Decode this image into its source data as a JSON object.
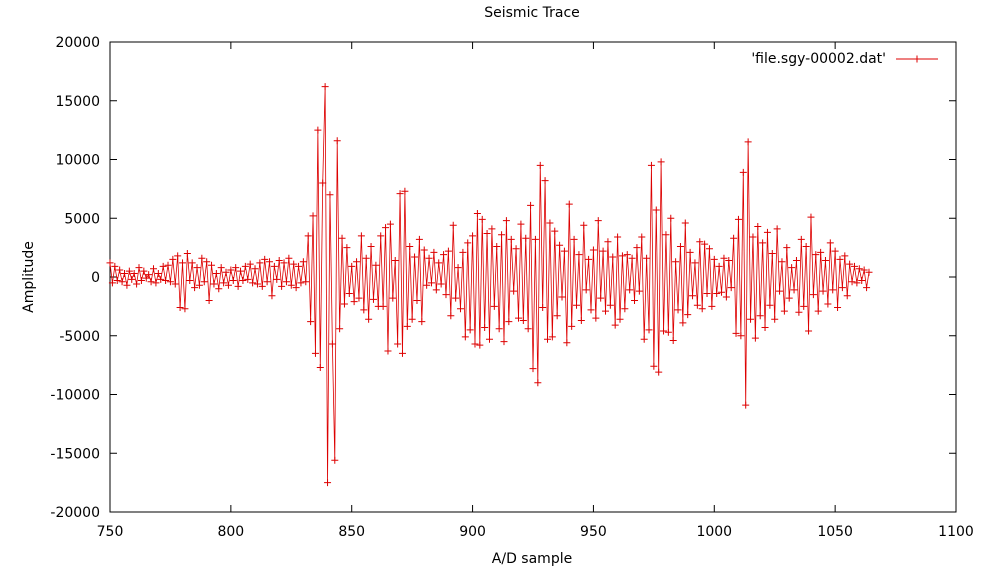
{
  "chart_data": {
    "type": "line",
    "title": "Seismic Trace",
    "xlabel": "A/D sample",
    "ylabel": "Amplitude",
    "xlim": [
      750,
      1100
    ],
    "ylim": [
      -20000,
      20000
    ],
    "xticks": [
      750,
      800,
      850,
      900,
      950,
      1000,
      1050,
      1100
    ],
    "yticks": [
      -20000,
      -15000,
      -10000,
      -5000,
      0,
      5000,
      10000,
      15000,
      20000
    ],
    "grid": false,
    "legend_position": "top-right",
    "marker": "plus",
    "series": [
      {
        "name": "'file.sgy-00002.dat'",
        "color": "#dd0000",
        "x_start": 750,
        "x_step": 1,
        "values": [
          1200,
          -500,
          900,
          -300,
          600,
          -400,
          300,
          -700,
          500,
          -200,
          300,
          -600,
          800,
          -300,
          500,
          -100,
          200,
          -400,
          700,
          -500,
          300,
          -200,
          900,
          -300,
          1000,
          -400,
          1500,
          -600,
          1800,
          -2600,
          1200,
          -2700,
          2000,
          -300,
          1200,
          -900,
          800,
          -700,
          1600,
          -400,
          1300,
          -2000,
          1000,
          -600,
          300,
          -1000,
          800,
          -500,
          400,
          -700,
          600,
          -300,
          800,
          -800,
          500,
          -300,
          900,
          -200,
          1100,
          -500,
          700,
          -600,
          1200,
          -800,
          1500,
          -400,
          1300,
          -1600,
          900,
          -200,
          1400,
          -800,
          1200,
          -400,
          1600,
          -700,
          1100,
          -900,
          900,
          -500,
          1300,
          -400,
          3500,
          -3800,
          5200,
          -6500,
          12500,
          -7700,
          8000,
          16200,
          -17500,
          7000,
          -5700,
          -15600,
          11600,
          -4400,
          3300,
          -2300,
          2500,
          -1400,
          900,
          -2100,
          1300,
          -1800,
          3500,
          -2800,
          1600,
          -3600,
          2600,
          -1900,
          1000,
          -2500,
          3500,
          -2500,
          4200,
          -6300,
          4500,
          -1800,
          1400,
          -5700,
          7100,
          -6500,
          7300,
          -4200,
          2600,
          -3600,
          1700,
          -2000,
          3200,
          -3800,
          2300,
          -700,
          1600,
          -500,
          2100,
          -1100,
          1200,
          -600,
          1900,
          -1500,
          2200,
          -3300,
          4400,
          -1800,
          800,
          -2700,
          2100,
          -5100,
          2900,
          -4500,
          3500,
          -5700,
          5400,
          -5800,
          4900,
          -4300,
          3700,
          -5300,
          4100,
          -2500,
          2600,
          -4400,
          3600,
          -5500,
          4800,
          -3800,
          3200,
          -1200,
          2400,
          -3500,
          4500,
          -3700,
          3300,
          -4400,
          6100,
          -7800,
          3200,
          -9000,
          9500,
          -2600,
          8200,
          -5300,
          4600,
          -5100,
          3900,
          -3300,
          2700,
          -1700,
          2200,
          -5600,
          6200,
          -4200,
          3200,
          -2400,
          1900,
          -3700,
          4400,
          -1100,
          1500,
          -2800,
          2300,
          -3500,
          4800,
          -1800,
          2200,
          -2900,
          3000,
          -2400,
          1700,
          -4100,
          3400,
          -3600,
          1800,
          -2700,
          1900,
          -1100,
          1600,
          -2000,
          2500,
          -1200,
          3400,
          -5300,
          1600,
          -4500,
          9500,
          -7600,
          5700,
          -8100,
          9800,
          -4600,
          3600,
          -4700,
          5000,
          -5400,
          1300,
          -2800,
          2600,
          -3900,
          4600,
          -3200,
          2100,
          -1600,
          1200,
          -2400,
          3000,
          -2700,
          2800,
          -1400,
          2400,
          -2500,
          1500,
          -1400,
          900,
          -1300,
          1600,
          -1700,
          1400,
          -900,
          3300,
          -4800,
          4900,
          -5000,
          8900,
          -10900,
          11500,
          -3600,
          3400,
          -5200,
          4300,
          -3300,
          2900,
          -4300,
          3800,
          -2400,
          2000,
          -3600,
          4100,
          -1200,
          1300,
          -2900,
          2500,
          -1800,
          800,
          -1100,
          1400,
          -3000,
          3200,
          -2500,
          2600,
          -4600,
          5100,
          -1500,
          1900,
          -2900,
          2100,
          -1200,
          1400,
          -2300,
          2900,
          -1100,
          2200,
          -2600,
          1500,
          -900,
          1800,
          -1600,
          1100,
          -400,
          900,
          -500,
          700,
          -300,
          600,
          -900,
          400
        ]
      }
    ]
  }
}
